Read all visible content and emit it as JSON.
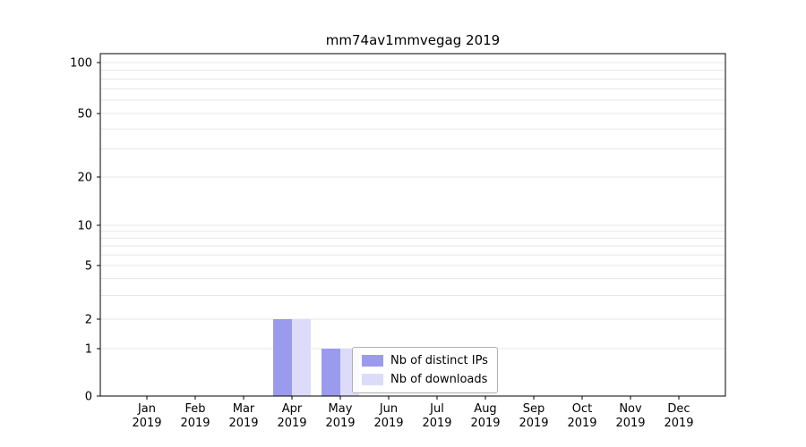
{
  "chart_data": {
    "type": "bar",
    "title": "mm74av1mmvegag 2019",
    "categories": [
      "Jan 2019",
      "Feb 2019",
      "Mar 2019",
      "Apr 2019",
      "May 2019",
      "Jun 2019",
      "Jul 2019",
      "Aug 2019",
      "Sep 2019",
      "Oct 2019",
      "Nov 2019",
      "Dec 2019"
    ],
    "series": [
      {
        "name": "Nb of distinct IPs",
        "color": "#9b9bee",
        "values": [
          0,
          0,
          0,
          2,
          1,
          0,
          0,
          0,
          0,
          0,
          0,
          0
        ]
      },
      {
        "name": "Nb of downloads",
        "color": "#dcdcfa",
        "values": [
          0,
          0,
          0,
          2,
          1,
          0,
          0,
          0,
          0,
          0,
          0,
          0
        ]
      }
    ],
    "yticks": [
      0,
      1,
      2,
      5,
      10,
      20,
      50,
      100
    ],
    "ylim": [
      0,
      100
    ],
    "scale": "log-with-zero",
    "grid": "horizontal-minor",
    "legend_position": "inside-bottom-center",
    "axis_color": "#000000",
    "grid_color": "#e7e7e7"
  }
}
